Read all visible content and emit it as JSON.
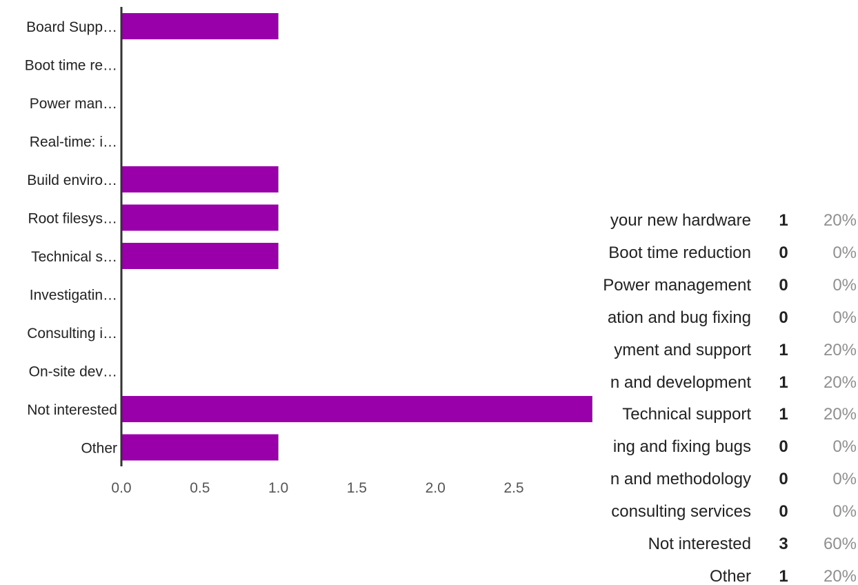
{
  "chart_data": {
    "type": "bar",
    "orientation": "horizontal",
    "categories": [
      "Board Supp…",
      "Boot time re…",
      "Power man…",
      "Real-time: i…",
      "Build enviro…",
      "Root filesys…",
      "Technical s…",
      "Investigatin…",
      "Consulting i…",
      "On-site dev…",
      "Not interested",
      "Other"
    ],
    "values": [
      1,
      0,
      0,
      0,
      1,
      1,
      1,
      0,
      0,
      0,
      3,
      1
    ],
    "x_ticks": [
      "0.0",
      "0.5",
      "1.0",
      "1.5",
      "2.0",
      "2.5"
    ],
    "xlim": [
      0,
      3
    ],
    "bar_color": "#9900aa",
    "grid": false,
    "title": "",
    "xlabel": "",
    "ylabel": ""
  },
  "summary": {
    "rows": [
      {
        "label": "your new hardware",
        "count": "1",
        "percent": "20%"
      },
      {
        "label": "Boot time reduction",
        "count": "0",
        "percent": "0%"
      },
      {
        "label": "Power management",
        "count": "0",
        "percent": "0%"
      },
      {
        "label": "ation and bug fixing",
        "count": "0",
        "percent": "0%"
      },
      {
        "label": "yment and support",
        "count": "1",
        "percent": "20%"
      },
      {
        "label": "n and development",
        "count": "1",
        "percent": "20%"
      },
      {
        "label": "Technical support",
        "count": "1",
        "percent": "20%"
      },
      {
        "label": "ing and fixing bugs",
        "count": "0",
        "percent": "0%"
      },
      {
        "label": "n and methodology",
        "count": "0",
        "percent": "0%"
      },
      {
        "label": "consulting services",
        "count": "0",
        "percent": "0%"
      },
      {
        "label": "Not interested",
        "count": "3",
        "percent": "60%"
      },
      {
        "label": "Other",
        "count": "1",
        "percent": "20%"
      }
    ]
  }
}
